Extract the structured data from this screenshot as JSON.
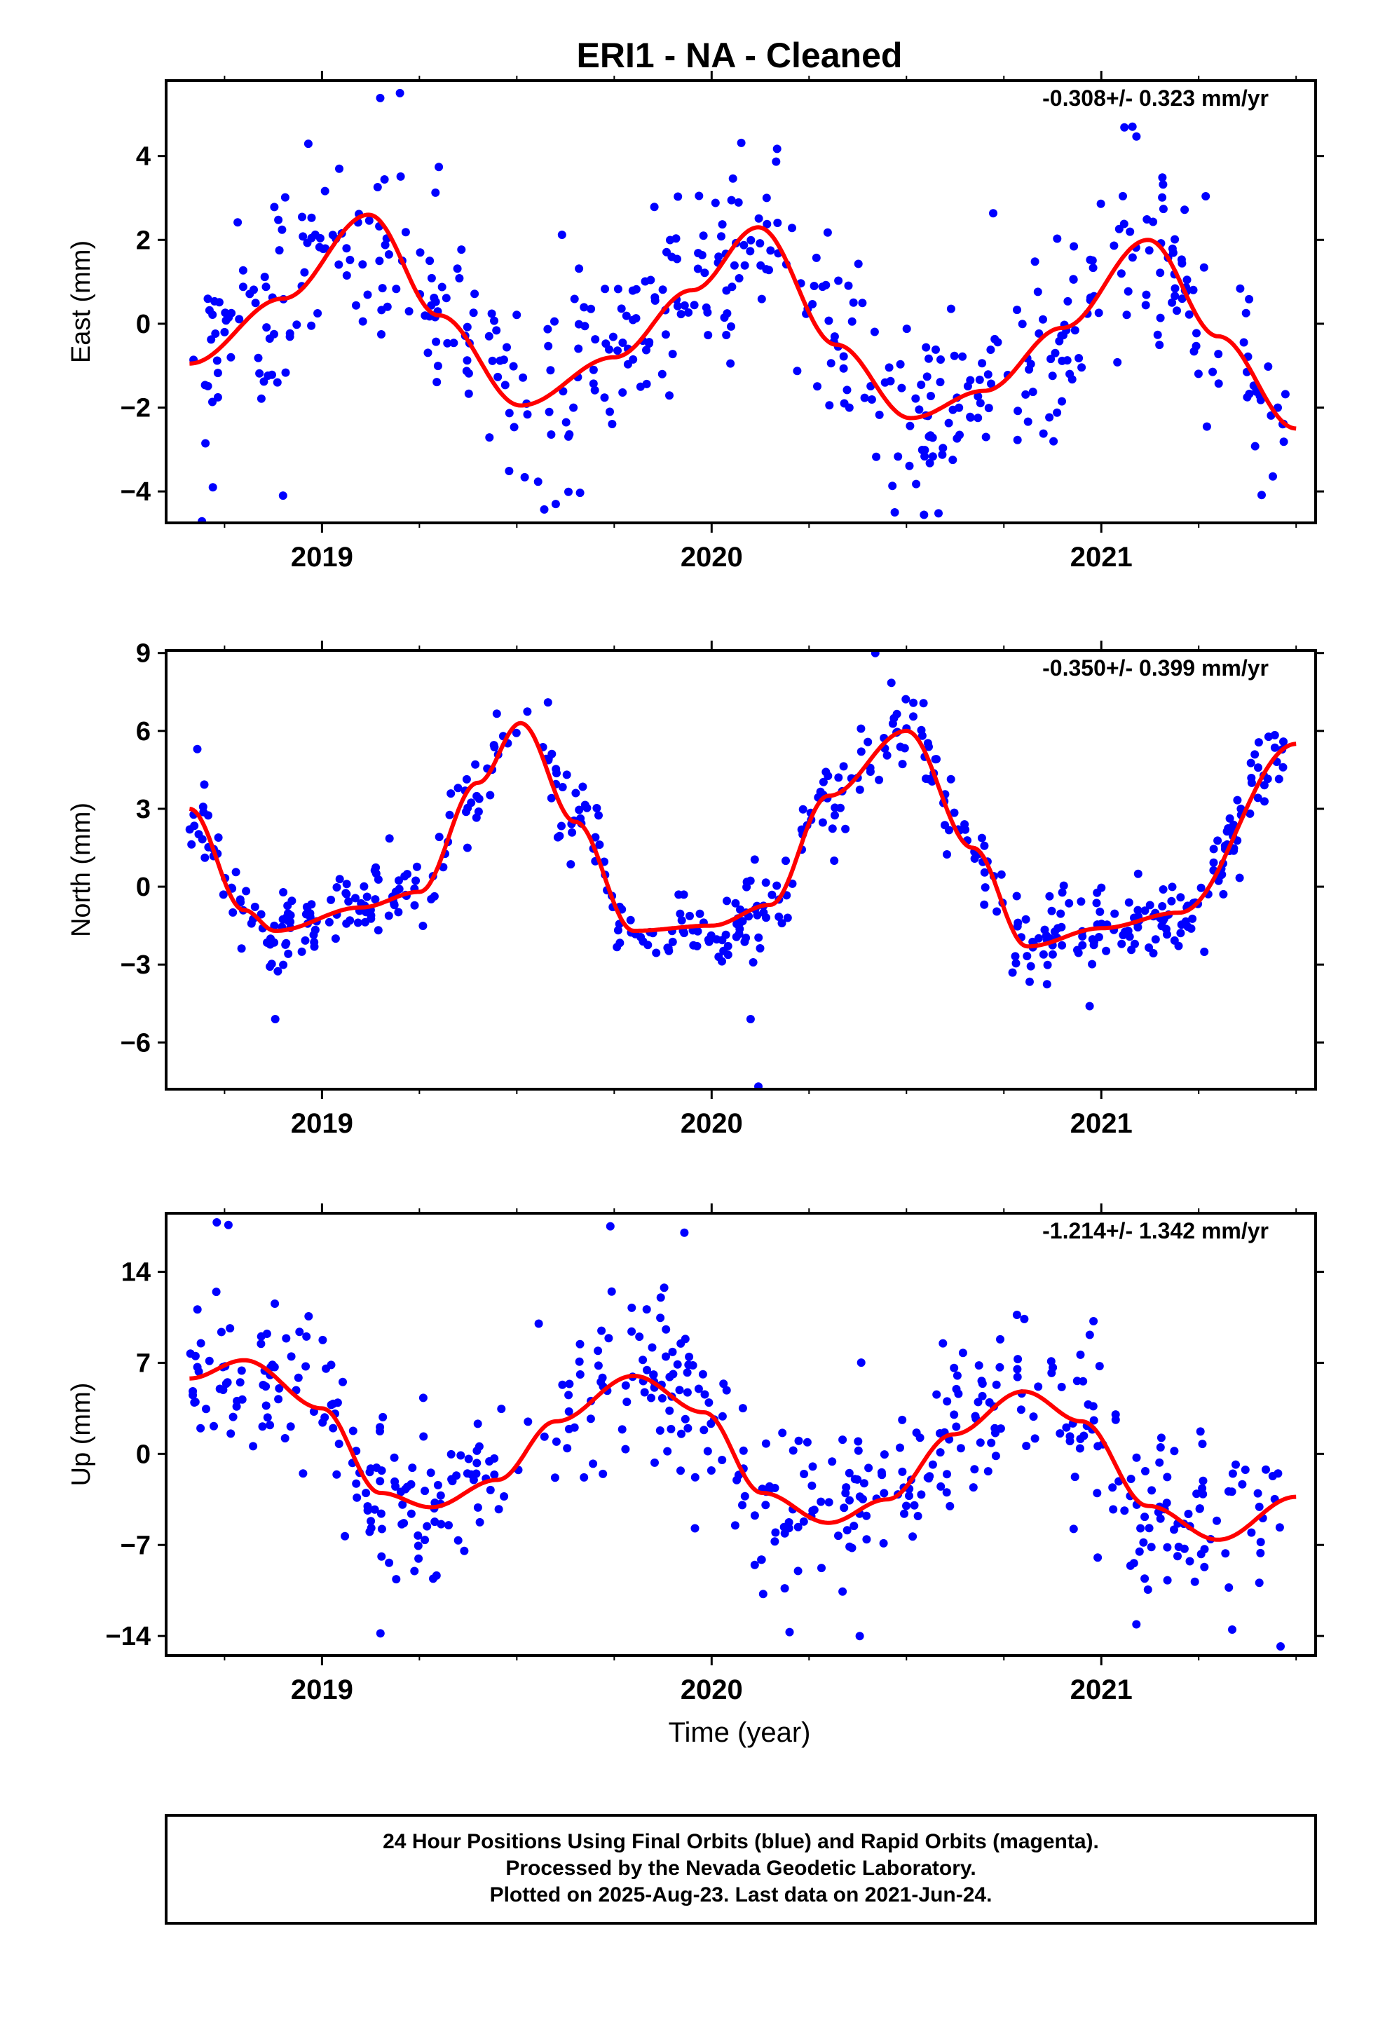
{
  "title": "ERI1  - NA - Cleaned",
  "xlabel": "Time (year)",
  "footer": {
    "line1": "24 Hour Positions Using Final Orbits (blue) and Rapid Orbits (magenta).",
    "line2": "Processed by the Nevada Geodetic Laboratory.",
    "line3": "Plotted on 2025-Aug-23. Last data on 2021-Jun-24."
  },
  "colors": {
    "final_orbits": "#0000ff",
    "fit": "#ff0000",
    "rapid_orbits": "#ff00ff"
  },
  "chart_data": [
    {
      "type": "scatter",
      "panel": "east",
      "ylabel": "East (mm)",
      "rate": "-0.308+/- 0.323 mm/yr",
      "xlim": [
        2018.6,
        2021.55
      ],
      "ylim": [
        -4.75,
        5.8
      ],
      "yticks": [
        -4,
        -2,
        0,
        2,
        4
      ],
      "xticks": [
        "2019",
        "2020",
        "2021"
      ],
      "grid": false,
      "fit": {
        "x": [
          2018.66,
          2018.9,
          2019.12,
          2019.3,
          2019.51,
          2019.75,
          2019.95,
          2020.12,
          2020.32,
          2020.51,
          2020.7,
          2020.9,
          2021.12,
          2021.3,
          2021.5
        ],
        "y": [
          -0.95,
          0.6,
          2.6,
          0.2,
          -1.95,
          -0.8,
          0.8,
          2.3,
          -0.5,
          -2.25,
          -1.6,
          -0.1,
          2.0,
          -0.3,
          -2.5
        ]
      },
      "points": {
        "scatter": 1.1,
        "outliers": [
          [
            2018.72,
            -3.9
          ],
          [
            2018.9,
            -4.1
          ],
          [
            2019.2,
            5.5
          ],
          [
            2019.6,
            -4.3
          ],
          [
            2020.47,
            -4.5
          ],
          [
            2021.08,
            4.7
          ]
        ]
      }
    },
    {
      "type": "scatter",
      "panel": "north",
      "ylabel": "North (mm)",
      "rate": "-0.350+/- 0.399 mm/yr",
      "xlim": [
        2018.6,
        2021.55
      ],
      "ylim": [
        -7.8,
        9.1
      ],
      "yticks": [
        -6,
        -3,
        0,
        3,
        6,
        9
      ],
      "xticks": [
        "2019",
        "2020",
        "2021"
      ],
      "grid": false,
      "fit": {
        "x": [
          2018.66,
          2018.8,
          2018.88,
          2019.1,
          2019.25,
          2019.4,
          2019.51,
          2019.65,
          2019.8,
          2020.0,
          2020.15,
          2020.3,
          2020.5,
          2020.67,
          2020.81,
          2021.0,
          2021.2,
          2021.5
        ],
        "y": [
          3.0,
          -0.9,
          -1.7,
          -0.8,
          -0.2,
          4.0,
          6.3,
          2.5,
          -1.7,
          -1.5,
          -0.7,
          3.5,
          6.0,
          1.5,
          -2.3,
          -1.6,
          -1.0,
          5.5
        ]
      },
      "points": {
        "scatter": 0.75,
        "outliers": [
          [
            2018.68,
            5.3
          ],
          [
            2018.88,
            -5.1
          ],
          [
            2019.58,
            7.1
          ],
          [
            2020.1,
            -5.1
          ],
          [
            2020.12,
            -7.7
          ],
          [
            2020.42,
            9.0
          ],
          [
            2020.97,
            -4.6
          ]
        ]
      }
    },
    {
      "type": "scatter",
      "panel": "up",
      "ylabel": "Up (mm)",
      "rate": "-1.214+/- 1.342 mm/yr",
      "xlim": [
        2018.6,
        2021.55
      ],
      "ylim": [
        -15.5,
        18.5
      ],
      "yticks": [
        -14,
        -7,
        0,
        7,
        14
      ],
      "xticks": [
        "2019",
        "2020",
        "2021"
      ],
      "grid": false,
      "fit": {
        "x": [
          2018.66,
          2018.8,
          2019.0,
          2019.15,
          2019.28,
          2019.45,
          2019.6,
          2019.8,
          2019.98,
          2020.13,
          2020.3,
          2020.45,
          2020.62,
          2020.8,
          2020.95,
          2021.12,
          2021.3,
          2021.5
        ],
        "y": [
          5.8,
          7.2,
          3.5,
          -3.0,
          -4.1,
          -2.0,
          2.5,
          6.0,
          3.2,
          -3.0,
          -5.3,
          -3.5,
          1.5,
          4.8,
          2.5,
          -4.0,
          -6.6,
          -3.3
        ]
      },
      "points": {
        "scatter": 3.2,
        "outliers": [
          [
            2018.73,
            17.8
          ],
          [
            2018.76,
            17.6
          ],
          [
            2019.15,
            -13.8
          ],
          [
            2019.74,
            17.5
          ],
          [
            2019.93,
            17.0
          ],
          [
            2020.2,
            -13.7
          ],
          [
            2020.38,
            -14.0
          ],
          [
            2020.98,
            10.2
          ],
          [
            2021.09,
            -13.1
          ],
          [
            2021.46,
            -14.8
          ]
        ]
      }
    }
  ]
}
